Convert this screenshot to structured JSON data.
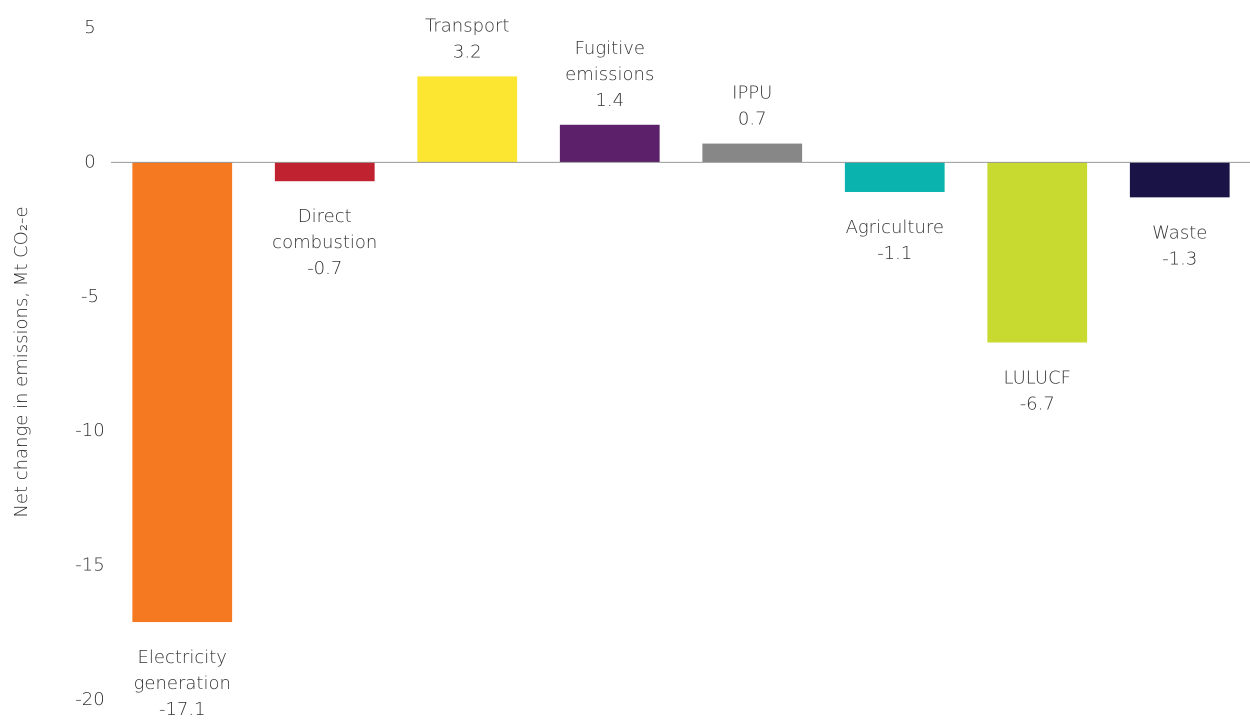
{
  "chart_data": {
    "type": "bar",
    "y_axis_label": "Net change in emissions, Mt CO₂-e",
    "categories": [
      [
        "Electricity",
        "generation"
      ],
      [
        "Direct",
        "combustion"
      ],
      [
        "Transport"
      ],
      [
        "Fugitive",
        "emissions"
      ],
      [
        "IPPU"
      ],
      [
        "Agriculture"
      ],
      [
        "LULUCF"
      ],
      [
        "Waste"
      ]
    ],
    "values": [
      -17.1,
      -0.7,
      3.2,
      1.4,
      0.7,
      -1.1,
      -6.7,
      -1.3
    ],
    "colors": [
      "#f47920",
      "#c0222f",
      "#fde632",
      "#5b2069",
      "#878787",
      "#0ab3ad",
      "#c8d930",
      "#1a1446"
    ],
    "ylim": [
      -20,
      5
    ],
    "yticks": [
      -20,
      -15,
      -10,
      -5,
      0,
      5
    ],
    "grid": false
  }
}
